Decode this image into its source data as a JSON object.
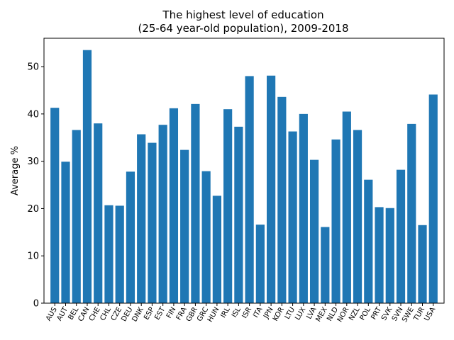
{
  "chart_data": {
    "type": "bar",
    "title": "The highest level of education\n(25-64 year-old population), 2009-2018",
    "title_lines": [
      "The highest level of education",
      "(25-64 year-old population), 2009-2018"
    ],
    "xlabel": "",
    "ylabel": "Average %",
    "ylim": [
      0,
      56
    ],
    "yticks": [
      0,
      10,
      20,
      30,
      40,
      50
    ],
    "color": "#1f77b4",
    "grid": false,
    "categories": [
      "AUS",
      "AUT",
      "BEL",
      "CAN",
      "CHE",
      "CHL",
      "CZE",
      "DEU",
      "DNK",
      "ESP",
      "EST",
      "FIN",
      "FRA",
      "GBR",
      "GRC",
      "HUN",
      "IRL",
      "ISL",
      "ISR",
      "ITA",
      "JPN",
      "KOR",
      "LTU",
      "LUX",
      "LVA",
      "MEX",
      "NLD",
      "NOR",
      "NZL",
      "POL",
      "PRT",
      "SVK",
      "SVN",
      "SWE",
      "TUR",
      "USA"
    ],
    "values": [
      41.3,
      29.9,
      36.6,
      53.5,
      38.0,
      20.7,
      20.6,
      27.8,
      35.7,
      33.9,
      37.7,
      41.2,
      32.4,
      42.1,
      27.9,
      22.7,
      41.0,
      37.3,
      48.0,
      16.6,
      48.1,
      43.6,
      36.3,
      40.0,
      30.3,
      16.1,
      34.6,
      40.5,
      36.6,
      26.1,
      20.3,
      20.1,
      28.2,
      37.9,
      16.5,
      44.1
    ]
  }
}
